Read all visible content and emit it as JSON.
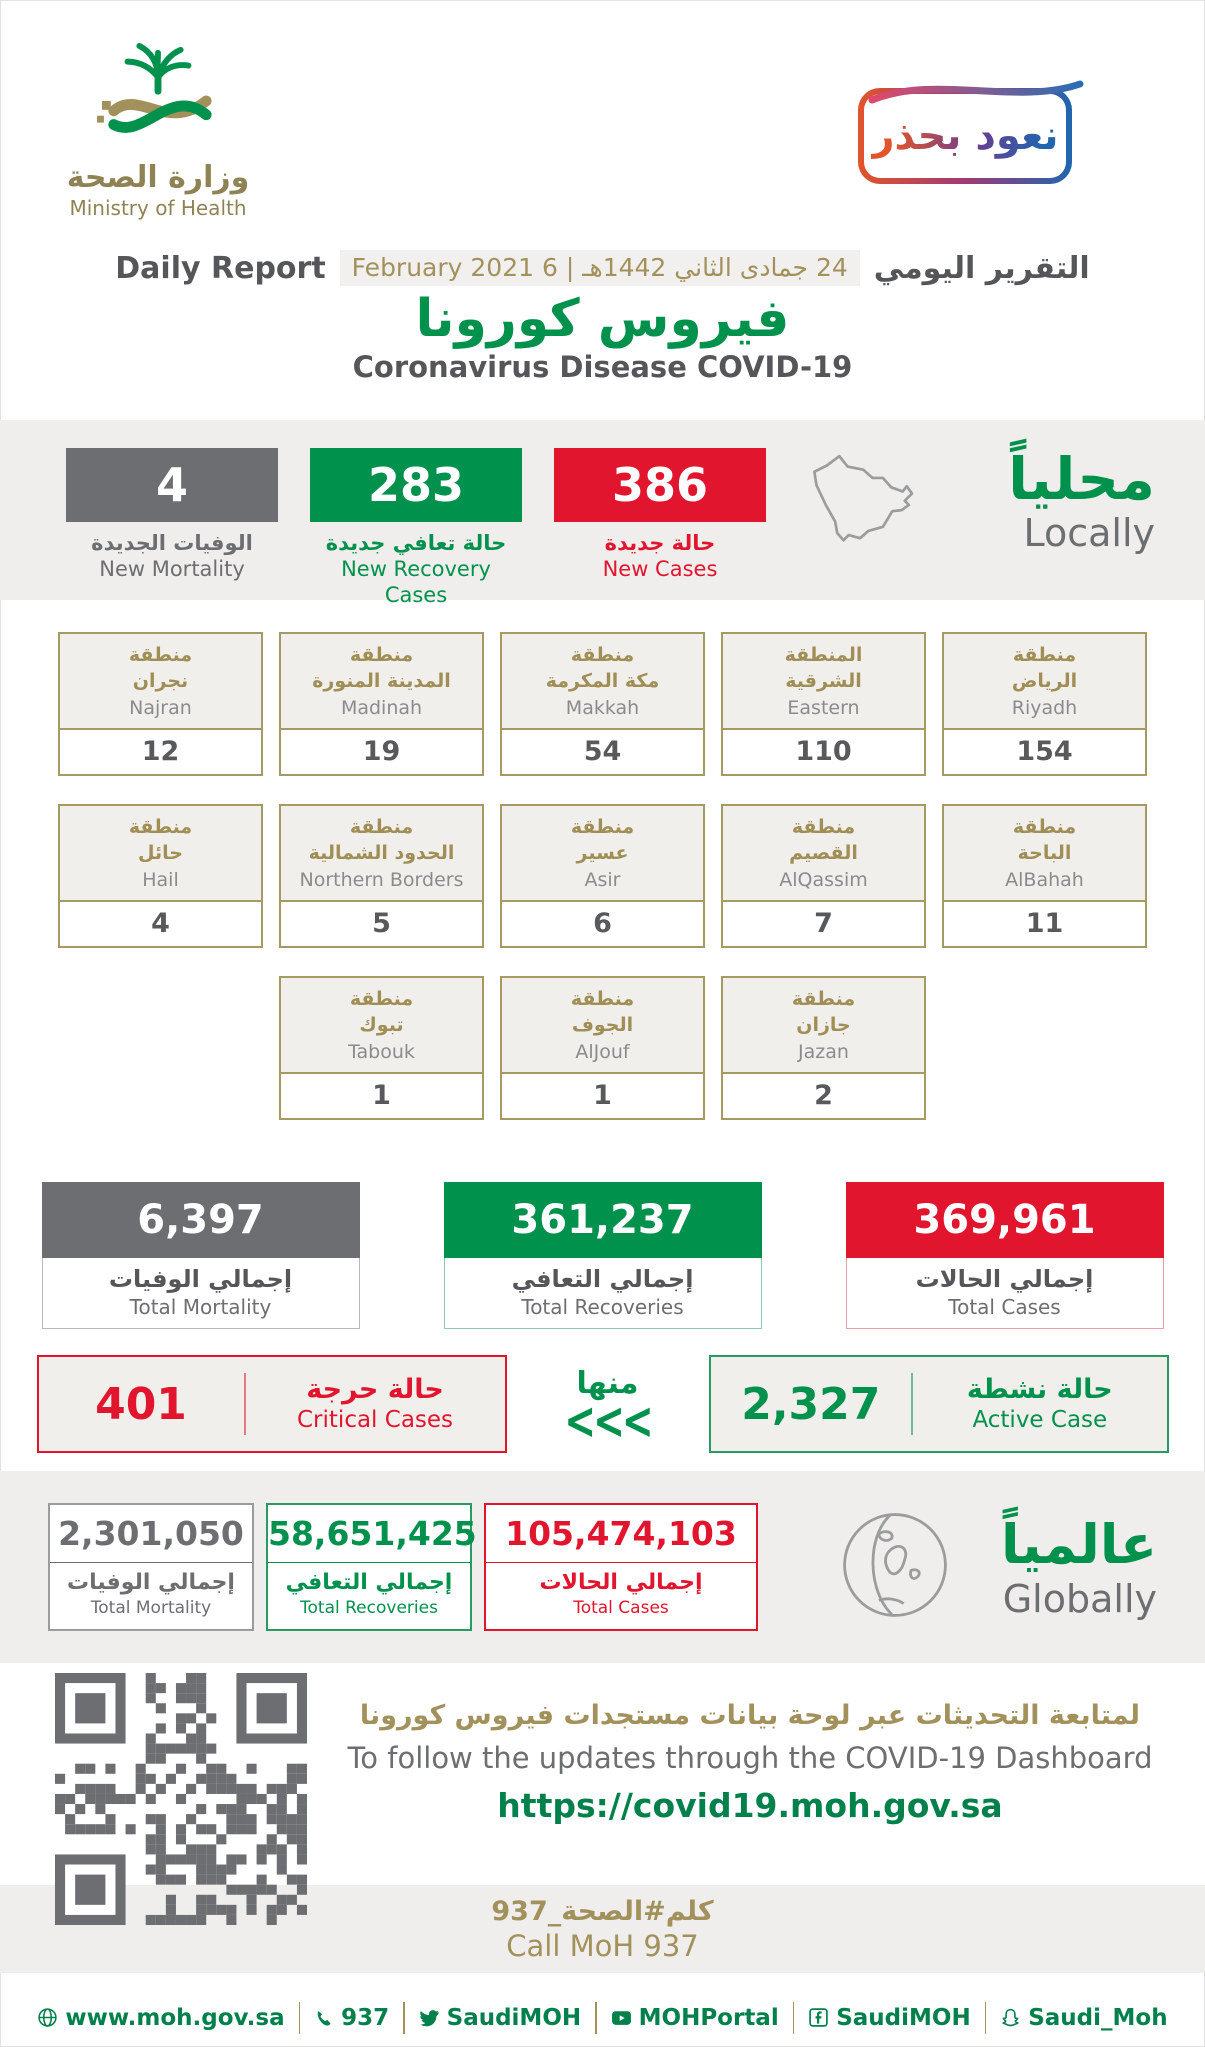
{
  "colors": {
    "green": "#00914d",
    "red": "#e2152e",
    "gray": "#6d6e71",
    "gold": "#a3915c",
    "band_bg": "#efeeec"
  },
  "header": {
    "ministry_ar": "وزارة الصحة",
    "ministry_en": "Ministry of Health",
    "badge_text": "نعود بحذر",
    "daily_report_en": "Daily Report",
    "date": "24 جمادى الثاني 1442هـ | 6 February 2021",
    "daily_report_ar": "التقرير اليومي",
    "title_ar": "فيروس كورونا",
    "title_en": "Coronavirus Disease COVID-19"
  },
  "locally": {
    "heading_ar": "محلياً",
    "heading_en": "Locally",
    "new_mortality": {
      "value": "4",
      "label_ar": "الوفيات الجديدة",
      "label_en": "New Mortality"
    },
    "new_recoveries": {
      "value": "283",
      "label_ar": "حالة تعافي جديدة",
      "label_en": "New Recovery Cases"
    },
    "new_cases": {
      "value": "386",
      "label_ar": "حالة جديدة",
      "label_en": "New Cases"
    }
  },
  "regions": {
    "row1": [
      {
        "ar1": "منطقة",
        "ar2": "نجران",
        "en": "Najran",
        "value": "12"
      },
      {
        "ar1": "منطقة",
        "ar2": "المدينة المنورة",
        "en": "Madinah",
        "value": "19"
      },
      {
        "ar1": "منطقة",
        "ar2": "مكة المكرمة",
        "en": "Makkah",
        "value": "54"
      },
      {
        "ar1": "المنطقة",
        "ar2": "الشرقية",
        "en": "Eastern",
        "value": "110"
      },
      {
        "ar1": "منطقة",
        "ar2": "الرياض",
        "en": "Riyadh",
        "value": "154"
      }
    ],
    "row2": [
      {
        "ar1": "منطقة",
        "ar2": "حائل",
        "en": "Hail",
        "value": "4"
      },
      {
        "ar1": "منطقة",
        "ar2": "الحدود الشمالية",
        "en": "Northern Borders",
        "value": "5"
      },
      {
        "ar1": "منطقة",
        "ar2": "عسير",
        "en": "Asir",
        "value": "6"
      },
      {
        "ar1": "منطقة",
        "ar2": "القصيم",
        "en": "AlQassim",
        "value": "7"
      },
      {
        "ar1": "منطقة",
        "ar2": "الباحة",
        "en": "AlBahah",
        "value": "11"
      }
    ],
    "row3": [
      {
        "ar1": "منطقة",
        "ar2": "تبوك",
        "en": "Tabouk",
        "value": "1"
      },
      {
        "ar1": "منطقة",
        "ar2": "الجوف",
        "en": "AlJouf",
        "value": "1"
      },
      {
        "ar1": "منطقة",
        "ar2": "جازان",
        "en": "Jazan",
        "value": "2"
      }
    ]
  },
  "totals": {
    "mortality": {
      "value": "6,397",
      "label_ar": "إجمالي الوفيات",
      "label_en": "Total Mortality"
    },
    "recoveries": {
      "value": "361,237",
      "label_ar": "إجمالي التعافي",
      "label_en": "Total Recoveries"
    },
    "cases": {
      "value": "369,961",
      "label_ar": "إجمالي الحالات",
      "label_en": "Total Cases"
    }
  },
  "breakdown": {
    "critical": {
      "value": "401",
      "label_ar": "حالة حرجة",
      "label_en": "Critical Cases"
    },
    "of_which_ar": "منها",
    "chevrons": "<<<",
    "active": {
      "value": "2,327",
      "label_ar": "حالة نشطة",
      "label_en": "Active Case"
    }
  },
  "globally": {
    "heading_ar": "عالمياً",
    "heading_en": "Globally",
    "mortality": {
      "value": "2,301,050",
      "label_ar": "إجمالي الوفيات",
      "label_en": "Total Mortality"
    },
    "recoveries": {
      "value": "58,651,425",
      "label_ar": "إجمالي التعافي",
      "label_en": "Total Recoveries"
    },
    "cases": {
      "value": "105,474,103",
      "label_ar": "إجمالي الحالات",
      "label_en": "Total Cases"
    }
  },
  "dashboard": {
    "line_ar": "لمتابعة التحديثات عبر لوحة بيانات مستجدات فيروس كورونا",
    "line_en": "To follow the updates through the COVID-19 Dashboard",
    "url": "https://covid19.moh.gov.sa"
  },
  "call": {
    "line_ar": "كلم#الصحة_937",
    "line_en": "Call MoH 937"
  },
  "footer": {
    "website": "www.moh.gov.sa",
    "phone": "937",
    "twitter": "SaudiMOH",
    "youtube": "MOHPortal",
    "facebook": "SaudiMOH",
    "snapchat": "Saudi_Moh"
  }
}
